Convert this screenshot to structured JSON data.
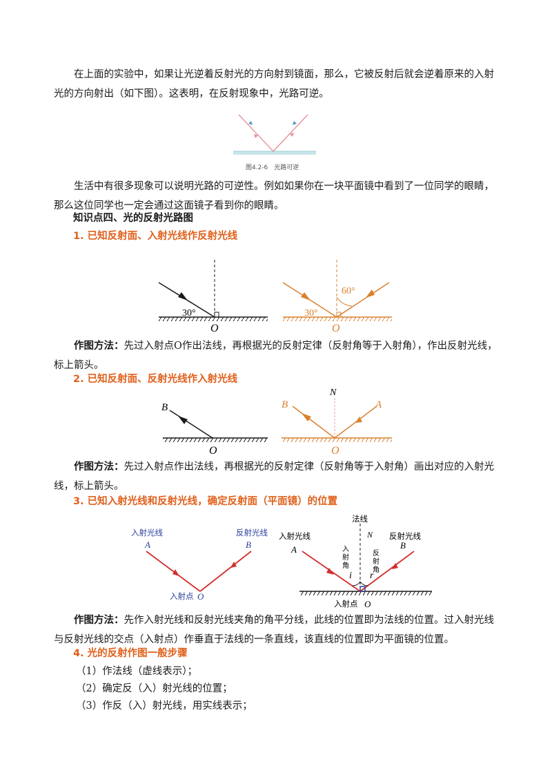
{
  "intro": {
    "para1": "在上面的实验中，如果让光逆着反射光的方向射到镜面，那么，它被反射后就会逆着原来的入射光的方向射出（如下图）。这表明，在反射现象中，光路可逆。",
    "figure_caption": "图4.2-6　光路可逆",
    "para2": "生活中有很多现象可以说明光路的可逆性。例如如果你在一块平面镜中看到了一位同学的眼睛，那么这位同学也一定会通过这面镜子看到你的眼睛。"
  },
  "section_title": "知识点四、光的反射光路图",
  "sub1": {
    "title": "1. 已知反射面、入射光线作反射光线",
    "fig_left": {
      "angle": "30°",
      "point": "O"
    },
    "fig_right": {
      "angle_incident": "30°",
      "angle_normal": "60°",
      "point": "O"
    },
    "method_label": "作图方法：",
    "method_text": "先过入射点O作出法线，再根据光的反射定律（反射角等于入射角），作出反射光线，标上箭头。"
  },
  "sub2": {
    "title": "2. 已知反射面、反射光线作入射光线",
    "fig_left": {
      "ray": "B",
      "point": "O"
    },
    "fig_right": {
      "ray_b": "B",
      "ray_a": "A",
      "normal": "N",
      "point": "O"
    },
    "method_label": "作图方法：",
    "method_text": "先过入射点作出法线，再根据光的反射定律（反射角等于入射角）画出对应的入射光线，标上箭头。"
  },
  "sub3": {
    "title": "3. 已知入射光线和反射光线，确定反射面（平面镜）的位置",
    "fig_left": {
      "incident_label": "入射光线",
      "reflected_label": "反射光线",
      "a": "A",
      "b": "B",
      "point_label": "入射点",
      "point": "O"
    },
    "fig_right": {
      "normal_label": "法线",
      "normal": "N",
      "incident_label": "入射光线",
      "reflected_label": "反射光线",
      "incident_angle_label": [
        "入",
        "射",
        "角"
      ],
      "reflected_angle_label": [
        "反",
        "射",
        "角"
      ],
      "i": "i",
      "r": "r",
      "a": "A",
      "b": "B",
      "point_label": "入射点",
      "point": "O"
    },
    "method_label": "作图方法：",
    "method_text": "先作入射光线和反射光线夹角的角平分线，此线的位置即为法线的位置。过入射光线与反射光线的交点（入射点）作垂直于法线的一条直线，该直线的位置即为平面镜的位置。"
  },
  "sub4": {
    "title": "4. 光的反射作图一般步骤",
    "steps": [
      "（1）作法线（虚线表示）；",
      "（2）确定反（入）射光线的位置；",
      "（3）作反（入）射光线，用实线表示；"
    ]
  },
  "colors": {
    "heading_orange": "#e0601b",
    "diagram_orange": "#d9812f",
    "ray_red": "#d42d2d",
    "label_blue": "#2c3f9f"
  }
}
